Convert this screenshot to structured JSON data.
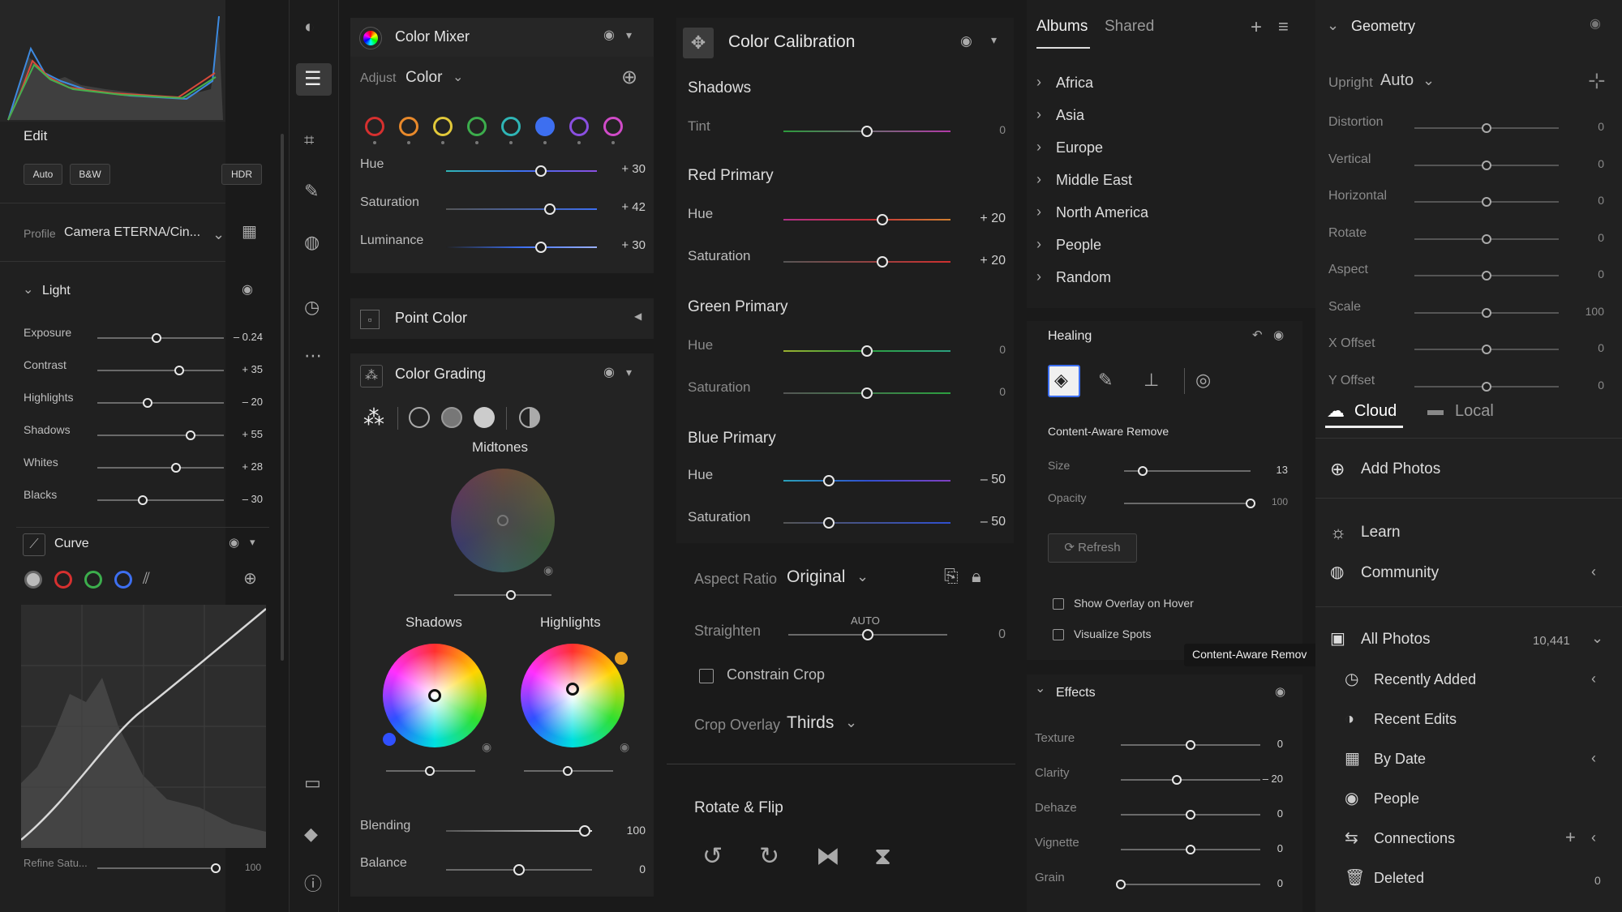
{
  "left": {
    "edit_title": "Edit",
    "auto": "Auto",
    "bw": "B&W",
    "hdr": "HDR",
    "profile_label": "Profile",
    "profile_value": "Camera ETERNA/Cin...",
    "light_title": "Light",
    "light": [
      {
        "label": "Exposure",
        "value": "– 0.24",
        "pos": 0.47
      },
      {
        "label": "Contrast",
        "value": "+ 35",
        "pos": 0.65
      },
      {
        "label": "Highlights",
        "value": "– 20",
        "pos": 0.4
      },
      {
        "label": "Shadows",
        "value": "+ 55",
        "pos": 0.74
      },
      {
        "label": "Whites",
        "value": "+ 28",
        "pos": 0.62
      },
      {
        "label": "Blacks",
        "value": "– 30",
        "pos": 0.36
      }
    ],
    "curve_title": "Curve",
    "refine_label": "Refine Satu...",
    "refine_value": "100",
    "refine_pos": 1.0
  },
  "mixer": {
    "title": "Color Mixer",
    "adjust_label": "Adjust",
    "adjust_value": "Color",
    "swatches": [
      "#d6302f",
      "#e8892b",
      "#e2c93a",
      "#3cad4c",
      "#2fb5b5",
      "#3d6ff0",
      "#8a4fe0",
      "#d04bc8"
    ],
    "rows": [
      {
        "label": "Hue",
        "value": "+ 30",
        "pos": 0.63
      },
      {
        "label": "Saturation",
        "value": "+ 42",
        "pos": 0.69
      },
      {
        "label": "Luminance",
        "value": "+ 30",
        "pos": 0.63
      }
    ],
    "point_color": "Point Color",
    "grading_title": "Color Grading",
    "midtones": "Midtones",
    "shadows": "Shadows",
    "highlights": "Highlights",
    "blending_label": "Blending",
    "blending_value": "100",
    "blending_pos": 0.95,
    "balance_label": "Balance",
    "balance_value": "0",
    "balance_pos": 0.5
  },
  "calibration": {
    "title": "Color Calibration",
    "shadows_title": "Shadows",
    "tint_label": "Tint",
    "tint_value": "0",
    "red_title": "Red Primary",
    "red_hue": "+ 20",
    "red_sat": "+ 20",
    "green_title": "Green Primary",
    "green_hue": "0",
    "green_sat": "0",
    "blue_title": "Blue Primary",
    "blue_hue": "– 50",
    "blue_sat": "– 50",
    "hue_label": "Hue",
    "sat_label": "Saturation"
  },
  "crop": {
    "aspect_label": "Aspect Ratio",
    "aspect_value": "Original",
    "straighten_label": "Straighten",
    "straighten_auto": "AUTO",
    "straighten_value": "0",
    "constrain": "Constrain Crop",
    "overlay_label": "Crop Overlay",
    "overlay_value": "Thirds",
    "rotate_title": "Rotate & Flip"
  },
  "albums": {
    "tab_albums": "Albums",
    "tab_shared": "Shared",
    "items": [
      "Africa",
      "Asia",
      "Europe",
      "Middle East",
      "North America",
      "People",
      "Random"
    ]
  },
  "healing": {
    "title": "Healing",
    "mode": "Content-Aware Remove",
    "size_label": "Size",
    "size_value": "13",
    "size_pos": 0.15,
    "opacity_label": "Opacity",
    "opacity_value": "100",
    "opacity_pos": 1.0,
    "refresh": "Refresh",
    "show_overlay": "Show Overlay on Hover",
    "visualize": "Visualize Spots",
    "tooltip": "Content-Aware Remov"
  },
  "effects": {
    "title": "Effects",
    "rows": [
      {
        "label": "Texture",
        "value": "0",
        "pos": 0.5
      },
      {
        "label": "Clarity",
        "value": "– 20",
        "pos": 0.4
      },
      {
        "label": "Dehaze",
        "value": "0",
        "pos": 0.5
      },
      {
        "label": "Vignette",
        "value": "0",
        "pos": 0.5
      },
      {
        "label": "Grain",
        "value": "0",
        "pos": 0.0
      }
    ]
  },
  "geometry": {
    "title": "Geometry",
    "upright_label": "Upright",
    "upright_value": "Auto",
    "rows": [
      {
        "label": "Distortion",
        "value": "0"
      },
      {
        "label": "Vertical",
        "value": "0"
      },
      {
        "label": "Horizontal",
        "value": "0"
      },
      {
        "label": "Rotate",
        "value": "0"
      },
      {
        "label": "Aspect",
        "value": "0"
      },
      {
        "label": "Scale",
        "value": "100"
      },
      {
        "label": "X Offset",
        "value": "0"
      },
      {
        "label": "Y Offset",
        "value": "0"
      }
    ]
  },
  "library": {
    "cloud": "Cloud",
    "local": "Local",
    "add_photos": "Add Photos",
    "learn": "Learn",
    "community": "Community",
    "all_photos": "All Photos",
    "all_count": "10,441",
    "items": [
      "Recently Added",
      "Recent Edits",
      "By Date",
      "People",
      "Connections",
      "Deleted"
    ],
    "deleted_count": "0"
  }
}
